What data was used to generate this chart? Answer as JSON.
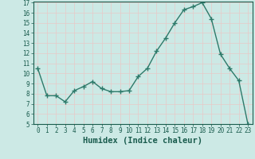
{
  "x": [
    0,
    1,
    2,
    3,
    4,
    5,
    6,
    7,
    8,
    9,
    10,
    11,
    12,
    13,
    14,
    15,
    16,
    17,
    18,
    19,
    20,
    21,
    22,
    23
  ],
  "y": [
    10.5,
    7.8,
    7.8,
    7.2,
    8.3,
    8.7,
    9.2,
    8.5,
    8.2,
    8.2,
    8.3,
    9.7,
    10.5,
    12.2,
    13.5,
    15.0,
    16.3,
    16.6,
    17.0,
    15.4,
    11.9,
    10.5,
    9.3,
    5.0
  ],
  "line_color": "#2d7a6a",
  "marker": "+",
  "marker_size": 4,
  "bg_color": "#cce9e5",
  "grid_color": "#e8c8c8",
  "xlabel": "Humidex (Indice chaleur)",
  "ylim": [
    5,
    17
  ],
  "xlim": [
    -0.5,
    23.5
  ],
  "yticks": [
    5,
    6,
    7,
    8,
    9,
    10,
    11,
    12,
    13,
    14,
    15,
    16,
    17
  ],
  "xticks": [
    0,
    1,
    2,
    3,
    4,
    5,
    6,
    7,
    8,
    9,
    10,
    11,
    12,
    13,
    14,
    15,
    16,
    17,
    18,
    19,
    20,
    21,
    22,
    23
  ],
  "tick_label_fontsize": 5.5,
  "xlabel_fontsize": 7.5,
  "tick_color": "#1a5c4e",
  "spine_color": "#1a5c4e",
  "linewidth": 1.0,
  "marker_linewidth": 1.0
}
